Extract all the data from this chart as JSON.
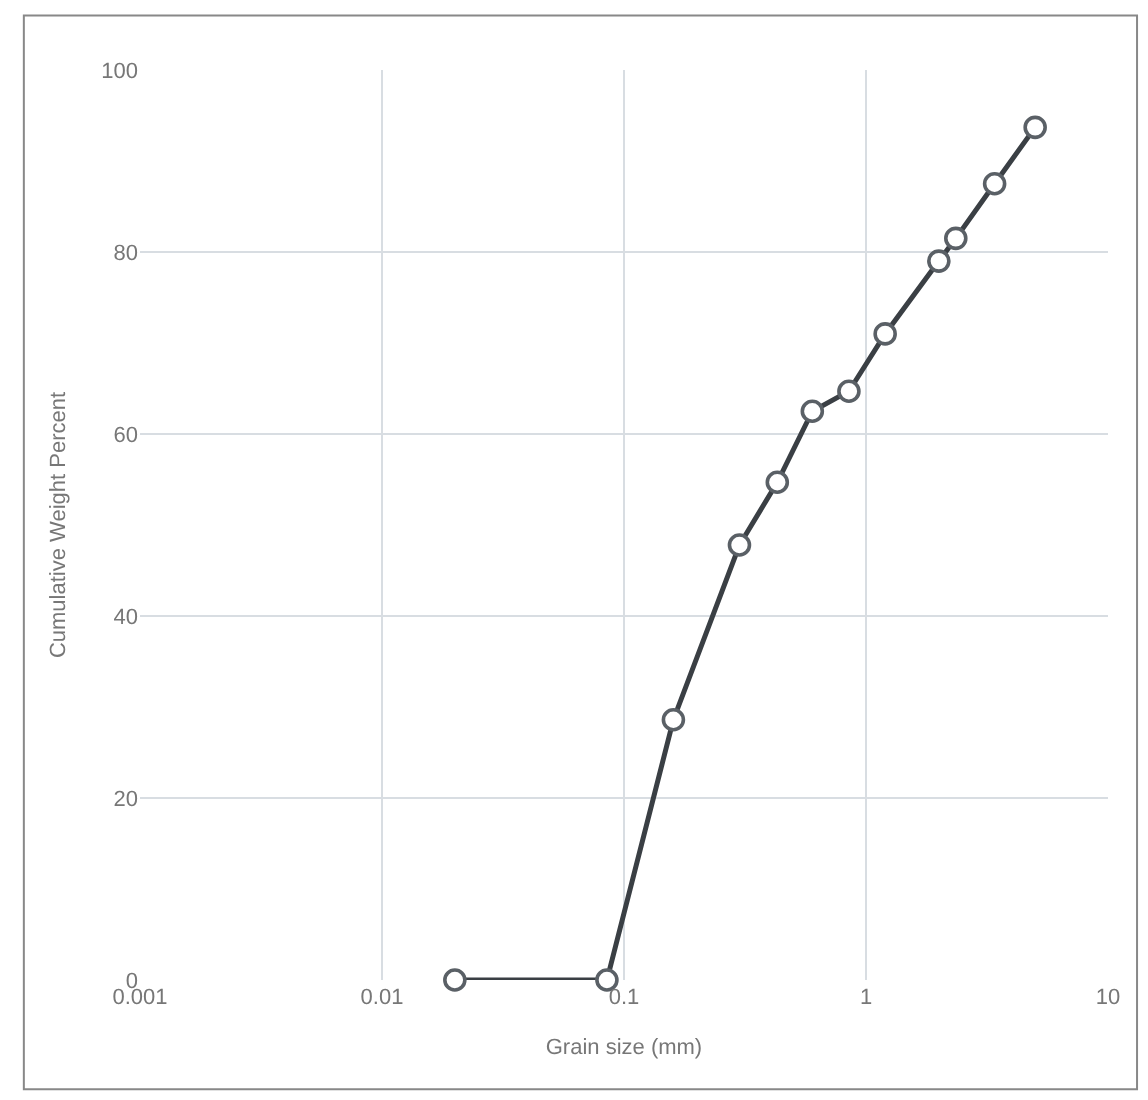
{
  "chart_data": {
    "type": "line",
    "xlabel": "Grain size (mm)",
    "ylabel": "Cumulative Weight Percent",
    "log": "x",
    "xlim": [
      0.001,
      10
    ],
    "xticks": [
      0.001,
      0.01,
      0.1,
      1,
      10
    ],
    "ylim": [
      0,
      100
    ],
    "yticks": [
      0,
      20,
      40,
      60,
      80,
      100
    ],
    "grid": true,
    "marker": "circle",
    "line_style": "solid",
    "series": [
      {
        "color": "#3a3f44",
        "x": [
          0.02,
          0.085,
          0.16,
          0.3,
          0.43,
          0.6,
          0.85,
          1.2,
          2.0,
          2.35,
          3.4,
          5.0
        ],
        "values": [
          0,
          0,
          28.6,
          47.8,
          54.7,
          62.5,
          64.7,
          71,
          79,
          81.5,
          87.5,
          93.7
        ]
      }
    ]
  }
}
